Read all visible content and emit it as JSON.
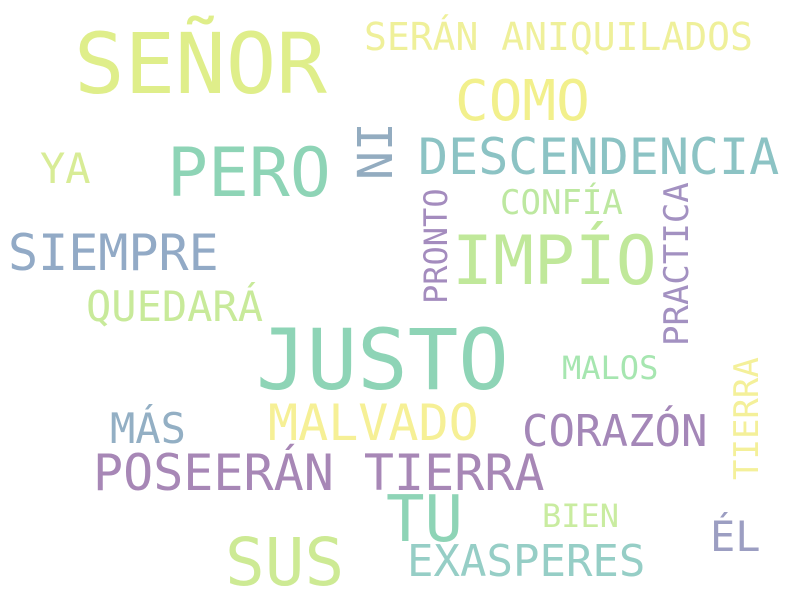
{
  "words": [
    {
      "text": "SEÑOR",
      "color": "#dfee8a"
    },
    {
      "text": "SERÁN ANIQUILADOS",
      "color": "#eff09a"
    },
    {
      "text": "COMO",
      "color": "#f2f08c"
    },
    {
      "text": "NI",
      "color": "#93acc0"
    },
    {
      "text": "DESCENDENCIA",
      "color": "#8cc3c4"
    },
    {
      "text": "PERO",
      "color": "#8ed4b6"
    },
    {
      "text": "YA",
      "color": "#d8ec96"
    },
    {
      "text": "PRONTO",
      "color": "#a48cbe"
    },
    {
      "text": "CONFÍA",
      "color": "#bde8a0"
    },
    {
      "text": "PRACTICA",
      "color": "#a391c1"
    },
    {
      "text": "SIEMPRE",
      "color": "#92aac6"
    },
    {
      "text": "IMPÍO",
      "color": "#c0e89a"
    },
    {
      "text": "QUEDARÁ",
      "color": "#c8ea9a"
    },
    {
      "text": "JUSTO",
      "color": "#8ed4b6"
    },
    {
      "text": "MALOS",
      "color": "#a6e6b0"
    },
    {
      "text": "TIERRA",
      "color": "#f4f09a"
    },
    {
      "text": "MÁS",
      "color": "#93afc4"
    },
    {
      "text": "MALVADO",
      "color": "#f6f096"
    },
    {
      "text": "CORAZÓN",
      "color": "#a487b8"
    },
    {
      "text": "POSEERÁN TIERRA",
      "color": "#a787b6"
    },
    {
      "text": "TU",
      "color": "#8ed4b6"
    },
    {
      "text": "BIEN",
      "color": "#c9eca0"
    },
    {
      "text": "ÉL",
      "color": "#9c9ec2"
    },
    {
      "text": "SUS",
      "color": "#cdea94"
    },
    {
      "text": "EXASPERES",
      "color": "#96cec6"
    }
  ]
}
